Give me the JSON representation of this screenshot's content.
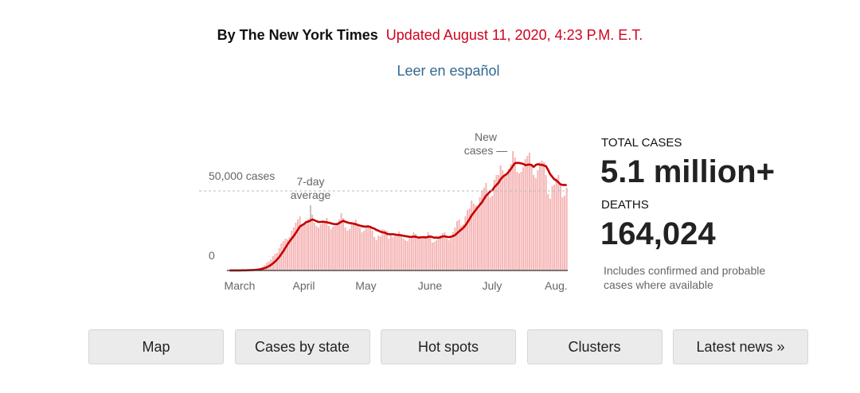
{
  "header": {
    "byline": "By The New York Times",
    "updated": "Updated August 11, 2020, 4:23 P.M. E.T.",
    "language_link": "Leer en español"
  },
  "chart_data": {
    "type": "bar",
    "categories": [
      "March",
      null,
      null,
      null,
      null,
      null,
      null,
      null,
      null,
      null,
      null,
      null,
      null,
      null,
      null,
      null,
      null,
      null,
      null,
      null,
      null,
      null,
      null,
      null,
      null,
      null,
      null,
      null,
      null,
      null,
      null,
      "April",
      null,
      null,
      null,
      null,
      null,
      null,
      null,
      null,
      null,
      null,
      null,
      null,
      null,
      null,
      null,
      null,
      null,
      null,
      null,
      null,
      null,
      null,
      null,
      null,
      null,
      null,
      null,
      null,
      null,
      "May",
      null,
      null,
      null,
      null,
      null,
      null,
      null,
      null,
      null,
      null,
      null,
      null,
      null,
      null,
      null,
      null,
      null,
      null,
      null,
      null,
      null,
      null,
      null,
      null,
      null,
      null,
      null,
      null,
      null,
      null,
      "June",
      null,
      null,
      null,
      null,
      null,
      null,
      null,
      null,
      null,
      null,
      null,
      null,
      null,
      null,
      null,
      null,
      null,
      null,
      null,
      null,
      null,
      null,
      null,
      null,
      null,
      null,
      null,
      null,
      null,
      "July",
      null,
      null,
      null,
      null,
      null,
      null,
      null,
      null,
      null,
      null,
      null,
      null,
      null,
      null,
      null,
      null,
      null,
      null,
      null,
      null,
      null,
      null,
      null,
      null,
      null,
      null,
      null,
      null,
      null,
      null,
      "Aug.",
      null,
      null,
      null,
      null,
      null,
      null,
      null,
      null,
      null,
      null
    ],
    "series": [
      {
        "name": "New cases —",
        "type": "bar",
        "color": "#f5b5b5",
        "values": [
          10,
          20,
          30,
          40,
          60,
          90,
          110,
          150,
          200,
          290,
          400,
          500,
          700,
          900,
          1200,
          1700,
          2500,
          3500,
          4800,
          5800,
          7000,
          9000,
          10500,
          11000,
          14000,
          17000,
          18500,
          20000,
          19500,
          21000,
          25000,
          27000,
          30000,
          32000,
          34000,
          29000,
          30000,
          31000,
          32500,
          33000,
          35000,
          30000,
          28000,
          27000,
          29000,
          30500,
          31000,
          33000,
          28000,
          26000,
          27500,
          28000,
          30000,
          32000,
          36000,
          33000,
          27000,
          25000,
          26000,
          29000,
          30000,
          32000,
          29000,
          27000,
          24000,
          25000,
          27000,
          28500,
          27500,
          25000,
          21000,
          19000,
          22000,
          21500,
          26000,
          25500,
          25000,
          20000,
          22000,
          21000,
          22500,
          23000,
          24500,
          22000,
          20000,
          19000,
          18500,
          20000,
          21500,
          24000,
          23000,
          20000,
          21000,
          20000,
          21500,
          21000,
          24000,
          22000,
          17500,
          18000,
          19000,
          21000,
          22000,
          23500,
          24000,
          20000,
          19000,
          21500,
          24000,
          27000,
          31000,
          32000,
          28000,
          29000,
          34000,
          38000,
          39000,
          44000,
          42000,
          41000,
          40000,
          46000,
          50000,
          52000,
          55000,
          49000,
          46000,
          47000,
          57000,
          60000,
          60000,
          66000,
          63000,
          59000,
          61000,
          64000,
          67000,
          75000,
          71000,
          62000,
          61000,
          62000,
          65000,
          70000,
          72000,
          74000,
          66000,
          60000,
          58000,
          63000,
          68000,
          69000,
          68000,
          60000,
          48000,
          45000,
          53000,
          54000,
          58000,
          60000,
          54000,
          46000,
          47000,
          52000
        ]
      },
      {
        "name": "7-day average",
        "type": "line",
        "color": "#c40000",
        "values": [
          10,
          15,
          20,
          30,
          40,
          55,
          70,
          90,
          110,
          150,
          200,
          260,
          340,
          450,
          600,
          800,
          1100,
          1500,
          2000,
          2700,
          3500,
          4500,
          5600,
          6900,
          8400,
          10300,
          12100,
          14300,
          16400,
          18300,
          20000,
          21600,
          23600,
          25600,
          27600,
          28500,
          29200,
          30400,
          30700,
          31300,
          32100,
          31600,
          31000,
          30500,
          30500,
          30700,
          30500,
          30300,
          30000,
          29700,
          29300,
          29100,
          29100,
          29800,
          30600,
          31200,
          30600,
          30200,
          29800,
          29700,
          29400,
          29100,
          28600,
          28200,
          27900,
          27600,
          27600,
          27700,
          27400,
          26700,
          26300,
          25500,
          25000,
          24400,
          24000,
          23800,
          23100,
          22800,
          22800,
          22800,
          22600,
          22400,
          22300,
          22100,
          21800,
          21600,
          21400,
          21100,
          21100,
          21300,
          21200,
          20800,
          20700,
          20900,
          20900,
          20800,
          21100,
          21400,
          21000,
          20600,
          20700,
          20600,
          20900,
          21400,
          21500,
          21100,
          21000,
          21200,
          21600,
          22200,
          23400,
          24600,
          25700,
          26800,
          28300,
          30300,
          32300,
          34600,
          36300,
          38000,
          39700,
          41300,
          42800,
          45000,
          47000,
          48300,
          49700,
          50300,
          52400,
          53700,
          55100,
          57300,
          58700,
          59800,
          60600,
          62100,
          63800,
          65800,
          67500,
          67600,
          67600,
          67300,
          67000,
          66200,
          66400,
          66600,
          66300,
          65100,
          66300,
          66800,
          66500,
          66400,
          66000,
          65500,
          63200,
          60500,
          58900,
          57300,
          56600,
          55400,
          54100,
          53800,
          53800,
          53600
        ]
      }
    ],
    "ylim": [
      0,
      75000
    ],
    "yticks": [
      0,
      {
        "value": 50000,
        "label": "50,000 cases"
      }
    ]
  },
  "stats": {
    "total_cases": {
      "label": "TOTAL CASES",
      "value": "5.1 million+"
    },
    "deaths": {
      "label": "DEATHS",
      "value": "164,024"
    },
    "note": "Includes confirmed and probable cases where available"
  },
  "nav": [
    "Map",
    "Cases by state",
    "Hot spots",
    "Clusters",
    "Latest news »"
  ]
}
